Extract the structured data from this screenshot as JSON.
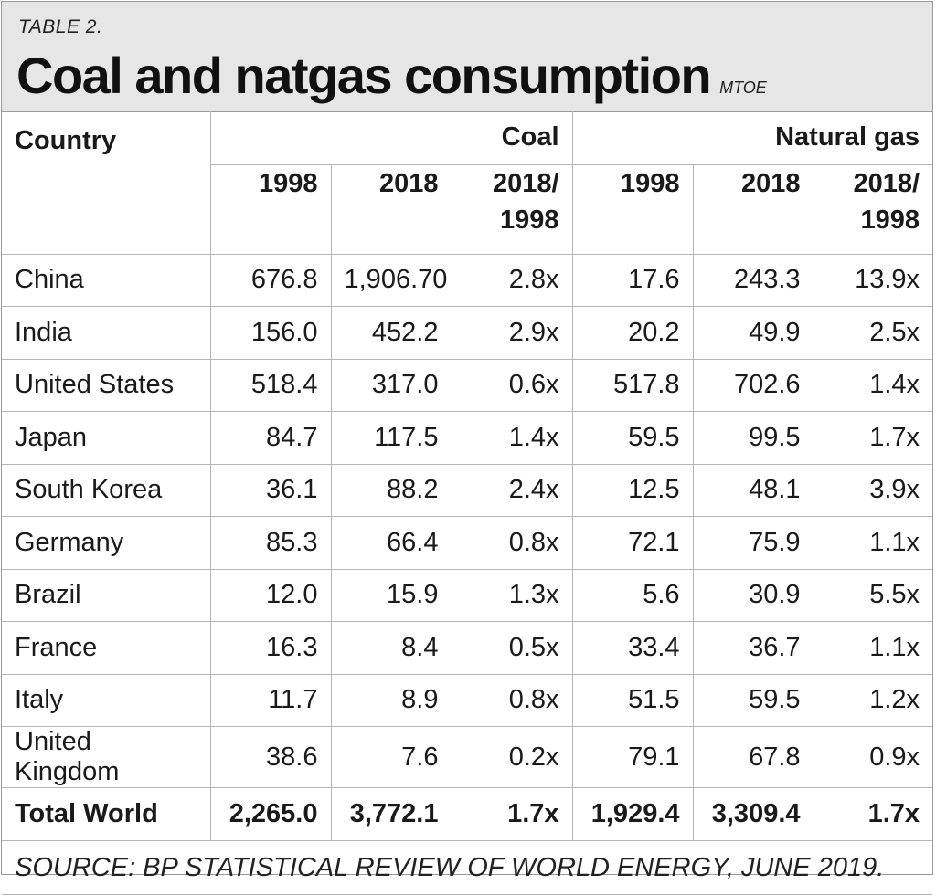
{
  "header": {
    "table_label": "TABLE 2.",
    "title": "Coal and natgas consumption",
    "unit": "MTOE"
  },
  "columns": {
    "country": "Country",
    "coal": "Coal",
    "natural_gas": "Natural gas",
    "coal_1998": "1998",
    "coal_2018": "2018",
    "coal_ratio_line1": "2018/",
    "coal_ratio_line2": "1998",
    "gas_1998": "1998",
    "gas_2018": "2018",
    "gas_ratio_line1": "2018/",
    "gas_ratio_line2": "1998"
  },
  "rows": [
    {
      "country": "China",
      "coal_1998": "676.8",
      "coal_2018": "1,906.70",
      "coal_ratio": "2.8x",
      "gas_1998": "17.6",
      "gas_2018": "243.3",
      "gas_ratio": "13.9x"
    },
    {
      "country": "India",
      "coal_1998": "156.0",
      "coal_2018": "452.2",
      "coal_ratio": "2.9x",
      "gas_1998": "20.2",
      "gas_2018": "49.9",
      "gas_ratio": "2.5x"
    },
    {
      "country": "United States",
      "coal_1998": "518.4",
      "coal_2018": "317.0",
      "coal_ratio": "0.6x",
      "gas_1998": "517.8",
      "gas_2018": "702.6",
      "gas_ratio": "1.4x"
    },
    {
      "country": "Japan",
      "coal_1998": "84.7",
      "coal_2018": "117.5",
      "coal_ratio": "1.4x",
      "gas_1998": "59.5",
      "gas_2018": "99.5",
      "gas_ratio": "1.7x"
    },
    {
      "country": "South Korea",
      "coal_1998": "36.1",
      "coal_2018": "88.2",
      "coal_ratio": "2.4x",
      "gas_1998": "12.5",
      "gas_2018": "48.1",
      "gas_ratio": "3.9x"
    },
    {
      "country": "Germany",
      "coal_1998": "85.3",
      "coal_2018": "66.4",
      "coal_ratio": "0.8x",
      "gas_1998": "72.1",
      "gas_2018": "75.9",
      "gas_ratio": "1.1x"
    },
    {
      "country": "Brazil",
      "coal_1998": "12.0",
      "coal_2018": "15.9",
      "coal_ratio": "1.3x",
      "gas_1998": "5.6",
      "gas_2018": "30.9",
      "gas_ratio": "5.5x"
    },
    {
      "country": "France",
      "coal_1998": "16.3",
      "coal_2018": "8.4",
      "coal_ratio": "0.5x",
      "gas_1998": "33.4",
      "gas_2018": "36.7",
      "gas_ratio": "1.1x"
    },
    {
      "country": "Italy",
      "coal_1998": "11.7",
      "coal_2018": "8.9",
      "coal_ratio": "0.8x",
      "gas_1998": "51.5",
      "gas_2018": "59.5",
      "gas_ratio": "1.2x"
    },
    {
      "country": "United Kingdom",
      "coal_1998": "38.6",
      "coal_2018": "7.6",
      "coal_ratio": "0.2x",
      "gas_1998": "79.1",
      "gas_2018": "67.8",
      "gas_ratio": "0.9x"
    }
  ],
  "total": {
    "country": "Total World",
    "coal_1998": "2,265.0",
    "coal_2018": "3,772.1",
    "coal_ratio": "1.7x",
    "gas_1998": "1,929.4",
    "gas_2018": "3,309.4",
    "gas_ratio": "1.7x"
  },
  "source": "SOURCE: BP STATISTICAL REVIEW OF WORLD ENERGY, JUNE 2019."
}
